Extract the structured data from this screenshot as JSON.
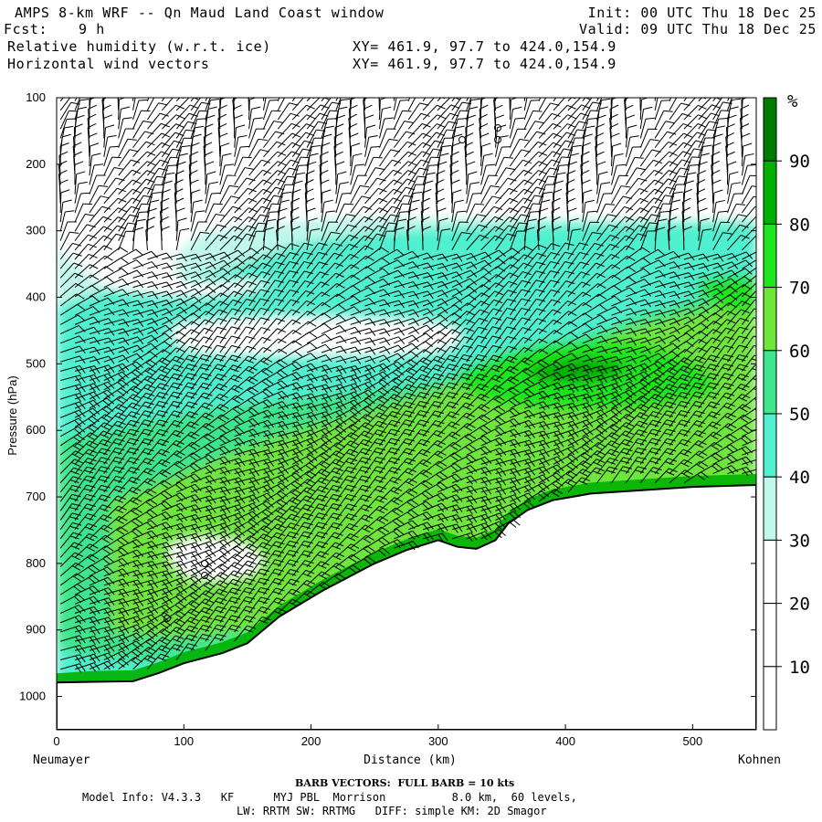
{
  "header": {
    "title": "AMPS 8-km WRF -- Qn Maud Land Coast window",
    "fcst_label": "Fcst:",
    "fcst_value": "9 h",
    "field1": "Relative humidity (w.r.t. ice)",
    "field2": "Horizontal wind vectors",
    "xy1": "XY= 461.9, 97.7 to 424.0,154.9",
    "xy2": "XY= 461.9, 97.7 to 424.0,154.9",
    "init": "Init: 00 UTC Thu 18 Dec 25",
    "valid": "Valid: 09 UTC Thu 18 Dec 25"
  },
  "footer": {
    "barb": "BARB VECTORS:  FULL BARB = 10 kts",
    "model1": "Model Info: V4.3.3   KF      MYJ PBL  Morrison          8.0 km,  60 levels,",
    "model2": "LW: RRTM SW: RRTMG   DIFF: simple KM: 2D Smagor"
  },
  "chart_data": {
    "type": "heatmap",
    "title": "Relative humidity (w.r.t. ice)",
    "xlabel": "Distance (km)",
    "ylabel": "Pressure (hPa)",
    "xlim": [
      0,
      550
    ],
    "ylim": [
      1050,
      100
    ],
    "x_ticks": [
      "0",
      "100",
      "200",
      "300",
      "400",
      "500"
    ],
    "y_ticks": [
      "100",
      "200",
      "300",
      "400",
      "500",
      "600",
      "700",
      "800",
      "900",
      "1000"
    ],
    "x_left_label": "Neumayer",
    "x_right_label": "Kohnen",
    "colorbar_unit": "%",
    "colorbar_ticks": [
      "10",
      "20",
      "30",
      "40",
      "50",
      "60",
      "70",
      "80",
      "90"
    ],
    "colorbar_bins": [
      {
        "range": [
          90,
          100
        ],
        "color": "#007a00"
      },
      {
        "range": [
          80,
          90
        ],
        "color": "#00b000"
      },
      {
        "range": [
          70,
          80
        ],
        "color": "#1ee61e"
      },
      {
        "range": [
          60,
          70
        ],
        "color": "#6ee63c"
      },
      {
        "range": [
          50,
          60
        ],
        "color": "#3ee68c"
      },
      {
        "range": [
          40,
          50
        ],
        "color": "#50f0d0"
      },
      {
        "range": [
          30,
          40
        ],
        "color": "#c0f8ec"
      },
      {
        "range": [
          20,
          30
        ],
        "color": "#ffffff"
      },
      {
        "range": [
          10,
          20
        ],
        "color": "#ffffff"
      },
      {
        "range": [
          0,
          10
        ],
        "color": "#ffffff"
      }
    ],
    "terrain_surface_pressure": [
      {
        "x": 0,
        "p": 979
      },
      {
        "x": 30,
        "p": 978
      },
      {
        "x": 60,
        "p": 977
      },
      {
        "x": 80,
        "p": 965
      },
      {
        "x": 100,
        "p": 950
      },
      {
        "x": 130,
        "p": 935
      },
      {
        "x": 150,
        "p": 920
      },
      {
        "x": 175,
        "p": 880
      },
      {
        "x": 210,
        "p": 840
      },
      {
        "x": 250,
        "p": 800
      },
      {
        "x": 275,
        "p": 780
      },
      {
        "x": 300,
        "p": 765
      },
      {
        "x": 315,
        "p": 775
      },
      {
        "x": 330,
        "p": 778
      },
      {
        "x": 345,
        "p": 765
      },
      {
        "x": 355,
        "p": 740
      },
      {
        "x": 370,
        "p": 720
      },
      {
        "x": 390,
        "p": 705
      },
      {
        "x": 420,
        "p": 695
      },
      {
        "x": 460,
        "p": 690
      },
      {
        "x": 500,
        "p": 685
      },
      {
        "x": 550,
        "p": 682
      }
    ]
  }
}
